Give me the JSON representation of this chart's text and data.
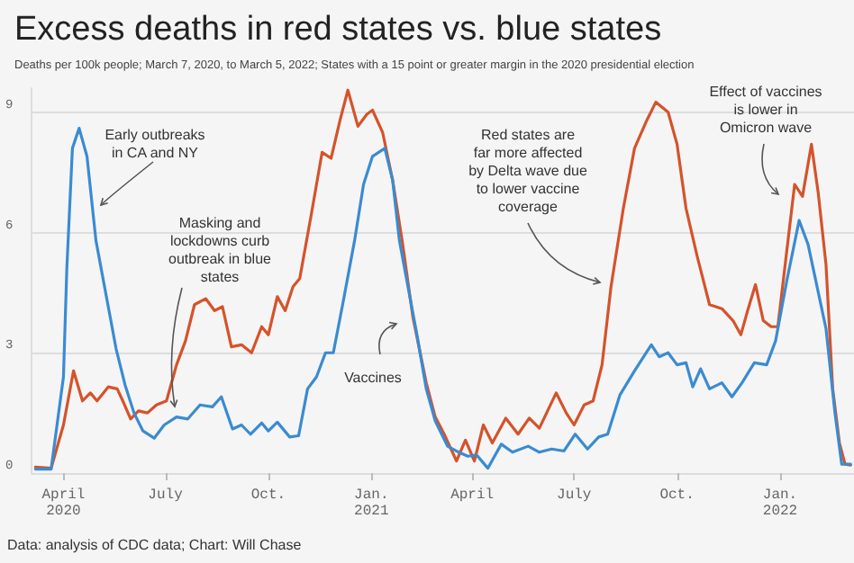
{
  "chart_data": {
    "type": "line",
    "title": "Excess deaths in red states vs. blue states",
    "subtitle": "Deaths per 100k people; March 7, 2020, to March 5, 2022; States with a 15 point or greater margin in the 2020 presidential election",
    "xlim": [
      "2020-03-03",
      "2022-03-08"
    ],
    "xticks": [
      {
        "value": "2020-04-01",
        "label": "April\n2020"
      },
      {
        "value": "2020-07-01",
        "label": "July"
      },
      {
        "value": "2020-10-01",
        "label": "Oct."
      },
      {
        "value": "2021-01-01",
        "label": "Jan.\n2021"
      },
      {
        "value": "2021-04-01",
        "label": "April"
      },
      {
        "value": "2021-07-01",
        "label": "July"
      },
      {
        "value": "2021-10-01",
        "label": "Oct."
      },
      {
        "value": "2022-01-01",
        "label": "Jan.\n2022"
      }
    ],
    "ylim": [
      0,
      9.6
    ],
    "yticks": [
      0,
      3,
      6,
      9
    ],
    "grid": "y",
    "series": [
      {
        "color": "#d4532b",
        "x": [
          "2020-03-07",
          "2020-03-21",
          "2020-04-01",
          "2020-04-10",
          "2020-04-18",
          "2020-04-25",
          "2020-05-01",
          "2020-05-11",
          "2020-05-19",
          "2020-05-24",
          "2020-05-31",
          "2020-06-07",
          "2020-06-15",
          "2020-06-23",
          "2020-07-02",
          "2020-07-11",
          "2020-07-19",
          "2020-07-27",
          "2020-08-06",
          "2020-08-14",
          "2020-08-21",
          "2020-08-29",
          "2020-09-07",
          "2020-09-16",
          "2020-09-25",
          "2020-10-01",
          "2020-10-09",
          "2020-10-16",
          "2020-10-23",
          "2020-10-29",
          "2020-11-08",
          "2020-11-18",
          "2020-11-26",
          "2020-12-04",
          "2020-12-11",
          "2020-12-20",
          "2020-12-28",
          "2021-01-02",
          "2021-01-11",
          "2021-01-20",
          "2021-01-29",
          "2021-02-07",
          "2021-02-19",
          "2021-02-27",
          "2021-03-07",
          "2021-03-18",
          "2021-03-26",
          "2021-04-03",
          "2021-04-11",
          "2021-04-19",
          "2021-05-01",
          "2021-05-12",
          "2021-05-22",
          "2021-05-31",
          "2021-06-15",
          "2021-06-24",
          "2021-07-01",
          "2021-07-10",
          "2021-07-18",
          "2021-07-26",
          "2021-08-03",
          "2021-08-14",
          "2021-08-24",
          "2021-09-04",
          "2021-09-12",
          "2021-09-23",
          "2021-10-01",
          "2021-10-09",
          "2021-10-19",
          "2021-10-30",
          "2021-11-10",
          "2021-11-20",
          "2021-11-27",
          "2021-12-03",
          "2021-12-10",
          "2021-12-17",
          "2021-12-24",
          "2021-12-30",
          "2022-01-07",
          "2022-01-14",
          "2022-01-21",
          "2022-01-29",
          "2022-02-04",
          "2022-02-11",
          "2022-02-17",
          "2022-02-23",
          "2022-02-28",
          "2022-03-05"
        ],
        "values": [
          0.15,
          0.12,
          1.2,
          2.55,
          1.8,
          2.0,
          1.8,
          2.15,
          2.1,
          1.8,
          1.35,
          1.55,
          1.5,
          1.7,
          1.8,
          2.7,
          3.3,
          4.2,
          4.35,
          4.05,
          4.15,
          3.15,
          3.2,
          3.0,
          3.65,
          3.45,
          4.4,
          4.05,
          4.65,
          4.85,
          6.4,
          8.0,
          7.85,
          8.8,
          9.55,
          8.65,
          8.95,
          9.05,
          8.5,
          7.3,
          5.7,
          3.9,
          2.25,
          1.4,
          0.97,
          0.3,
          0.82,
          0.3,
          1.2,
          0.75,
          1.37,
          0.97,
          1.37,
          1.12,
          2.0,
          1.5,
          1.2,
          1.7,
          1.8,
          2.7,
          4.65,
          6.6,
          8.1,
          8.8,
          9.25,
          9.0,
          8.2,
          6.6,
          5.4,
          4.2,
          4.1,
          3.8,
          3.45,
          4.05,
          4.7,
          3.8,
          3.65,
          3.65,
          5.55,
          7.2,
          6.9,
          8.2,
          7.0,
          5.2,
          2.1,
          0.75,
          0.22,
          0.2
        ]
      },
      {
        "color": "#3b8bd0",
        "x": [
          "2020-03-07",
          "2020-03-21",
          "2020-04-01",
          "2020-04-04",
          "2020-04-09",
          "2020-04-15",
          "2020-04-22",
          "2020-04-30",
          "2020-05-10",
          "2020-05-18",
          "2020-05-26",
          "2020-06-03",
          "2020-06-11",
          "2020-06-21",
          "2020-06-30",
          "2020-07-11",
          "2020-07-21",
          "2020-08-01",
          "2020-08-12",
          "2020-08-20",
          "2020-08-30",
          "2020-09-07",
          "2020-09-15",
          "2020-09-25",
          "2020-10-01",
          "2020-10-09",
          "2020-10-20",
          "2020-10-28",
          "2020-11-05",
          "2020-11-13",
          "2020-11-21",
          "2020-11-28",
          "2020-12-07",
          "2020-12-17",
          "2020-12-25",
          "2021-01-02",
          "2021-01-13",
          "2021-01-20",
          "2021-01-26",
          "2021-02-03",
          "2021-02-11",
          "2021-02-19",
          "2021-02-27",
          "2021-03-10",
          "2021-03-20",
          "2021-03-28",
          "2021-04-05",
          "2021-04-15",
          "2021-04-27",
          "2021-05-07",
          "2021-05-21",
          "2021-05-31",
          "2021-06-11",
          "2021-06-22",
          "2021-07-02",
          "2021-07-13",
          "2021-07-23",
          "2021-07-31",
          "2021-08-11",
          "2021-08-24",
          "2021-09-08",
          "2021-09-15",
          "2021-09-23",
          "2021-10-01",
          "2021-10-09",
          "2021-10-15",
          "2021-10-22",
          "2021-10-30",
          "2021-11-10",
          "2021-11-19",
          "2021-11-28",
          "2021-12-09",
          "2021-12-20",
          "2021-12-28",
          "2022-01-07",
          "2022-01-18",
          "2022-01-26",
          "2022-02-03",
          "2022-02-11",
          "2022-02-19",
          "2022-02-25",
          "2022-03-05"
        ],
        "values": [
          0.1,
          0.1,
          2.4,
          5.1,
          8.1,
          8.6,
          7.9,
          5.8,
          4.3,
          3.1,
          2.2,
          1.5,
          1.05,
          0.87,
          1.2,
          1.4,
          1.35,
          1.7,
          1.65,
          1.9,
          1.1,
          1.2,
          0.97,
          1.25,
          1.05,
          1.27,
          0.9,
          0.93,
          2.1,
          2.4,
          3.0,
          3.0,
          4.3,
          5.8,
          7.2,
          7.9,
          8.1,
          7.3,
          5.8,
          4.6,
          3.4,
          2.1,
          1.3,
          0.67,
          0.52,
          0.42,
          0.45,
          0.12,
          0.72,
          0.52,
          0.67,
          0.52,
          0.6,
          0.55,
          0.97,
          0.6,
          0.9,
          0.97,
          1.95,
          2.55,
          3.2,
          2.9,
          3.0,
          2.7,
          2.75,
          2.15,
          2.6,
          2.1,
          2.25,
          1.9,
          2.25,
          2.75,
          2.7,
          3.3,
          4.8,
          6.3,
          5.7,
          4.65,
          3.6,
          1.5,
          0.22,
          0.22
        ]
      }
    ],
    "annotations": [
      "Early outbreaks\nin CA and NY",
      "Masking and\nlockdowns curb\noutbreak in blue\nstates",
      "Vaccines",
      "Red states are\nfar more affected\nby Delta wave due\nto lower vaccine\ncoverage",
      "Effect of vaccines\nis lower in\nOmicron wave",
      "Data: analysis of CDC data; Chart: Will Chase"
    ]
  }
}
